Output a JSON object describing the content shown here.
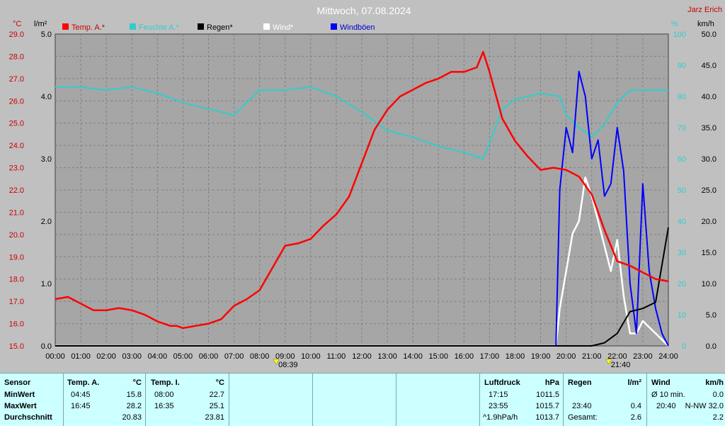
{
  "title": "Mittwoch, 07.08.2024",
  "station": "Jarz Erich",
  "colors": {
    "temp": "#ff0000",
    "feuchte": "#33cccc",
    "regen": "#000000",
    "wind": "#ffffff",
    "boeen": "#0000ff"
  },
  "chart_data": {
    "type": "line",
    "x_ticks": [
      "00:00",
      "01:00",
      "02:00",
      "03:00",
      "04:00",
      "05:00",
      "06:00",
      "07:00",
      "08:00",
      "09:00",
      "10:00",
      "11:00",
      "12:00",
      "13:00",
      "14:00",
      "15:00",
      "16:00",
      "17:00",
      "18:00",
      "19:00",
      "20:00",
      "21:00",
      "22:00",
      "23:00",
      "24:00"
    ],
    "axes": {
      "temp": {
        "unit": "°C",
        "min": 15.0,
        "max": 29.0,
        "ticks": [
          "29.0",
          "28.0",
          "27.0",
          "26.0",
          "25.0",
          "24.0",
          "23.0",
          "22.0",
          "21.0",
          "20.0",
          "19.0",
          "18.0",
          "17.0",
          "16.0",
          "15.0"
        ]
      },
      "rain": {
        "unit": "l/m²",
        "min": 0.0,
        "max": 5.0,
        "ticks": [
          "5.0",
          "4.0",
          "3.0",
          "2.0",
          "1.0",
          "0.0"
        ]
      },
      "humidity": {
        "unit": "%",
        "min": 0,
        "max": 100,
        "ticks": [
          "100",
          "90",
          "80",
          "70",
          "60",
          "50",
          "40",
          "30",
          "20",
          "10",
          "0"
        ]
      },
      "wind": {
        "unit": "km/h",
        "min": 0.0,
        "max": 50.0,
        "ticks": [
          "50.0",
          "45.0",
          "40.0",
          "35.0",
          "30.0",
          "25.0",
          "20.0",
          "15.0",
          "10.0",
          "5.0",
          "0.0"
        ]
      }
    },
    "legend": [
      "Temp. A.*",
      "Feuchte A.*",
      "Regen*",
      "Wind*",
      "Windböen"
    ],
    "markers": {
      "sunrise": "08:39",
      "sunset": "21:40"
    },
    "series": [
      {
        "name": "Temp. A.*",
        "axis": "temp",
        "x": [
          0,
          0.5,
          1,
          1.5,
          2,
          2.5,
          3,
          3.5,
          4,
          4.5,
          4.75,
          5,
          5.5,
          6,
          6.5,
          7,
          7.5,
          8,
          8.5,
          9,
          9.5,
          10,
          10.5,
          11,
          11.5,
          12,
          12.5,
          13,
          13.5,
          14,
          14.5,
          15,
          15.5,
          16,
          16.5,
          16.75,
          17,
          17.5,
          18,
          18.5,
          19,
          19.5,
          20,
          20.5,
          21,
          21.5,
          22,
          22.5,
          23,
          23.5,
          24
        ],
        "y": [
          17.1,
          17.2,
          16.9,
          16.6,
          16.6,
          16.7,
          16.6,
          16.4,
          16.1,
          15.9,
          15.9,
          15.8,
          15.9,
          16.0,
          16.2,
          16.8,
          17.1,
          17.5,
          18.5,
          19.5,
          19.6,
          19.8,
          20.4,
          20.9,
          21.7,
          23.2,
          24.7,
          25.6,
          26.2,
          26.5,
          26.8,
          27.0,
          27.3,
          27.3,
          27.5,
          28.2,
          27.3,
          25.2,
          24.2,
          23.5,
          22.9,
          23.0,
          22.9,
          22.6,
          21.8,
          20.2,
          18.8,
          18.6,
          18.3,
          18.0,
          17.9
        ]
      },
      {
        "name": "Feuchte A.*",
        "axis": "humidity",
        "x": [
          0,
          1,
          2,
          3,
          4,
          5,
          6,
          7,
          7.5,
          8,
          9,
          10,
          11,
          12,
          12.5,
          13,
          14,
          15,
          16,
          16.75,
          17,
          17.5,
          18,
          19,
          19.75,
          20,
          20.5,
          21,
          21.5,
          22,
          22.5,
          23,
          24
        ],
        "y": [
          83,
          83,
          82,
          83,
          81,
          78,
          76,
          74,
          78,
          82,
          82,
          83,
          80,
          75,
          72,
          69,
          67,
          64,
          62,
          60,
          65,
          76,
          79,
          81,
          80,
          74,
          70,
          67,
          71,
          78,
          82,
          82,
          82
        ]
      },
      {
        "name": "Regen*",
        "axis": "rain",
        "x": [
          0,
          21,
          21.5,
          22,
          22.5,
          23,
          23.5,
          24
        ],
        "y": [
          0,
          0,
          0.05,
          0.2,
          0.55,
          0.6,
          0.7,
          1.9
        ]
      },
      {
        "name": "Wind*",
        "axis": "wind",
        "x": [
          0,
          19.6,
          19.75,
          20,
          20.25,
          20.5,
          20.75,
          21,
          21.25,
          21.5,
          21.75,
          22,
          22.25,
          22.5,
          22.75,
          23,
          23.25,
          23.5,
          23.75,
          24
        ],
        "y": [
          0,
          0,
          6,
          12,
          18,
          20,
          27,
          24,
          20,
          16,
          12,
          17,
          8,
          2,
          2,
          4,
          3,
          2,
          1,
          0
        ]
      },
      {
        "name": "Windböen",
        "axis": "wind",
        "x": [
          0,
          19.6,
          19.75,
          20,
          20.25,
          20.5,
          20.75,
          21,
          21.25,
          21.5,
          21.75,
          22,
          22.25,
          22.5,
          22.75,
          23,
          23.25,
          23.5,
          23.75,
          24
        ],
        "y": [
          0,
          0,
          25,
          35,
          31,
          44,
          40,
          30,
          33,
          24,
          26,
          35,
          28,
          10,
          2,
          26,
          12,
          6,
          2,
          0
        ]
      }
    ]
  },
  "stats": {
    "sensor": {
      "label": "Sensor",
      "rows": [
        "MinWert",
        "MaxWert",
        "Durchschnitt"
      ]
    },
    "temp_a": {
      "label": "Temp. A.",
      "unit": "°C",
      "rows": [
        [
          "04:45",
          "15.8"
        ],
        [
          "16:45",
          "28.2"
        ],
        [
          "",
          "20.83"
        ]
      ]
    },
    "temp_i": {
      "label": "Temp. I.",
      "unit": "°C",
      "rows": [
        [
          "08:00",
          "22.7"
        ],
        [
          "16:35",
          "25.1"
        ],
        [
          "",
          "23.81"
        ]
      ]
    },
    "luftdruck": {
      "label": "Luftdruck",
      "unit": "hPa",
      "rows": [
        [
          "17:15",
          "1011.5"
        ],
        [
          "23:55",
          "1015.7"
        ],
        [
          "^1.9hPa/h",
          "1013.7"
        ]
      ]
    },
    "regen": {
      "label": "Regen",
      "unit": "l/m²",
      "rows": [
        [
          "",
          ""
        ],
        [
          "23:40",
          "0.4"
        ],
        [
          "Gesamt:",
          "2.6"
        ]
      ]
    },
    "wind": {
      "label": "Wind",
      "unit": "km/h",
      "rows": [
        [
          "Ø 10 min.",
          "0.0"
        ],
        [
          "20:40",
          "N-NW 32.0"
        ],
        [
          "",
          "2.2"
        ]
      ]
    }
  }
}
